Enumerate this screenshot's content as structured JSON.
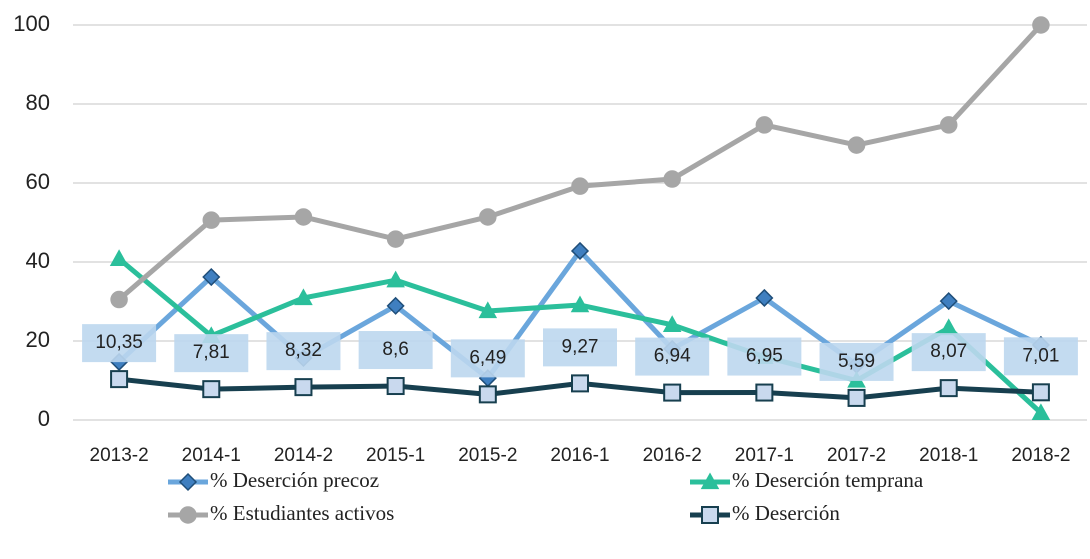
{
  "chart_data": {
    "type": "line",
    "categories": [
      "2013-2",
      "2014-1",
      "2014-2",
      "2015-1",
      "2015-2",
      "2016-1",
      "2016-2",
      "2017-1",
      "2017-2",
      "2018-1",
      "2018-2"
    ],
    "series": [
      {
        "name": "% Deserción precoz",
        "color": "#6aa6dc",
        "marker": "diamond",
        "values": [
          14.7,
          36.2,
          15.7,
          28.9,
          10.6,
          42.8,
          18,
          30.9,
          14,
          30.1,
          19
        ]
      },
      {
        "name": "% Deserción temprana",
        "color": "#2bbf9b",
        "marker": "triangle",
        "values": [
          40.8,
          21.3,
          30.9,
          35.4,
          27.6,
          29.1,
          24.1,
          16,
          10,
          23.3,
          1.8
        ]
      },
      {
        "name": "% Estudiantes activos",
        "color": "#a6a6a6",
        "marker": "circle",
        "values": [
          30.5,
          50.6,
          51.4,
          45.8,
          51.4,
          59.2,
          61,
          74.7,
          69.6,
          74.7,
          100
        ]
      },
      {
        "name": "% Deserción",
        "color": "#173f4f",
        "marker": "square",
        "values": [
          10.35,
          7.81,
          8.32,
          8.6,
          6.49,
          9.27,
          6.94,
          6.95,
          5.59,
          8.07,
          7.01
        ],
        "value_labels": [
          "10,35",
          "7,81",
          "8,32",
          "8,6",
          "6,49",
          "9,27",
          "6,94",
          "6,95",
          "5,59",
          "8,07",
          "7,01"
        ]
      }
    ],
    "ylim": [
      0,
      100
    ],
    "yticks": [
      0,
      20,
      40,
      60,
      80,
      100
    ],
    "grid": true,
    "legend": "bottom"
  }
}
